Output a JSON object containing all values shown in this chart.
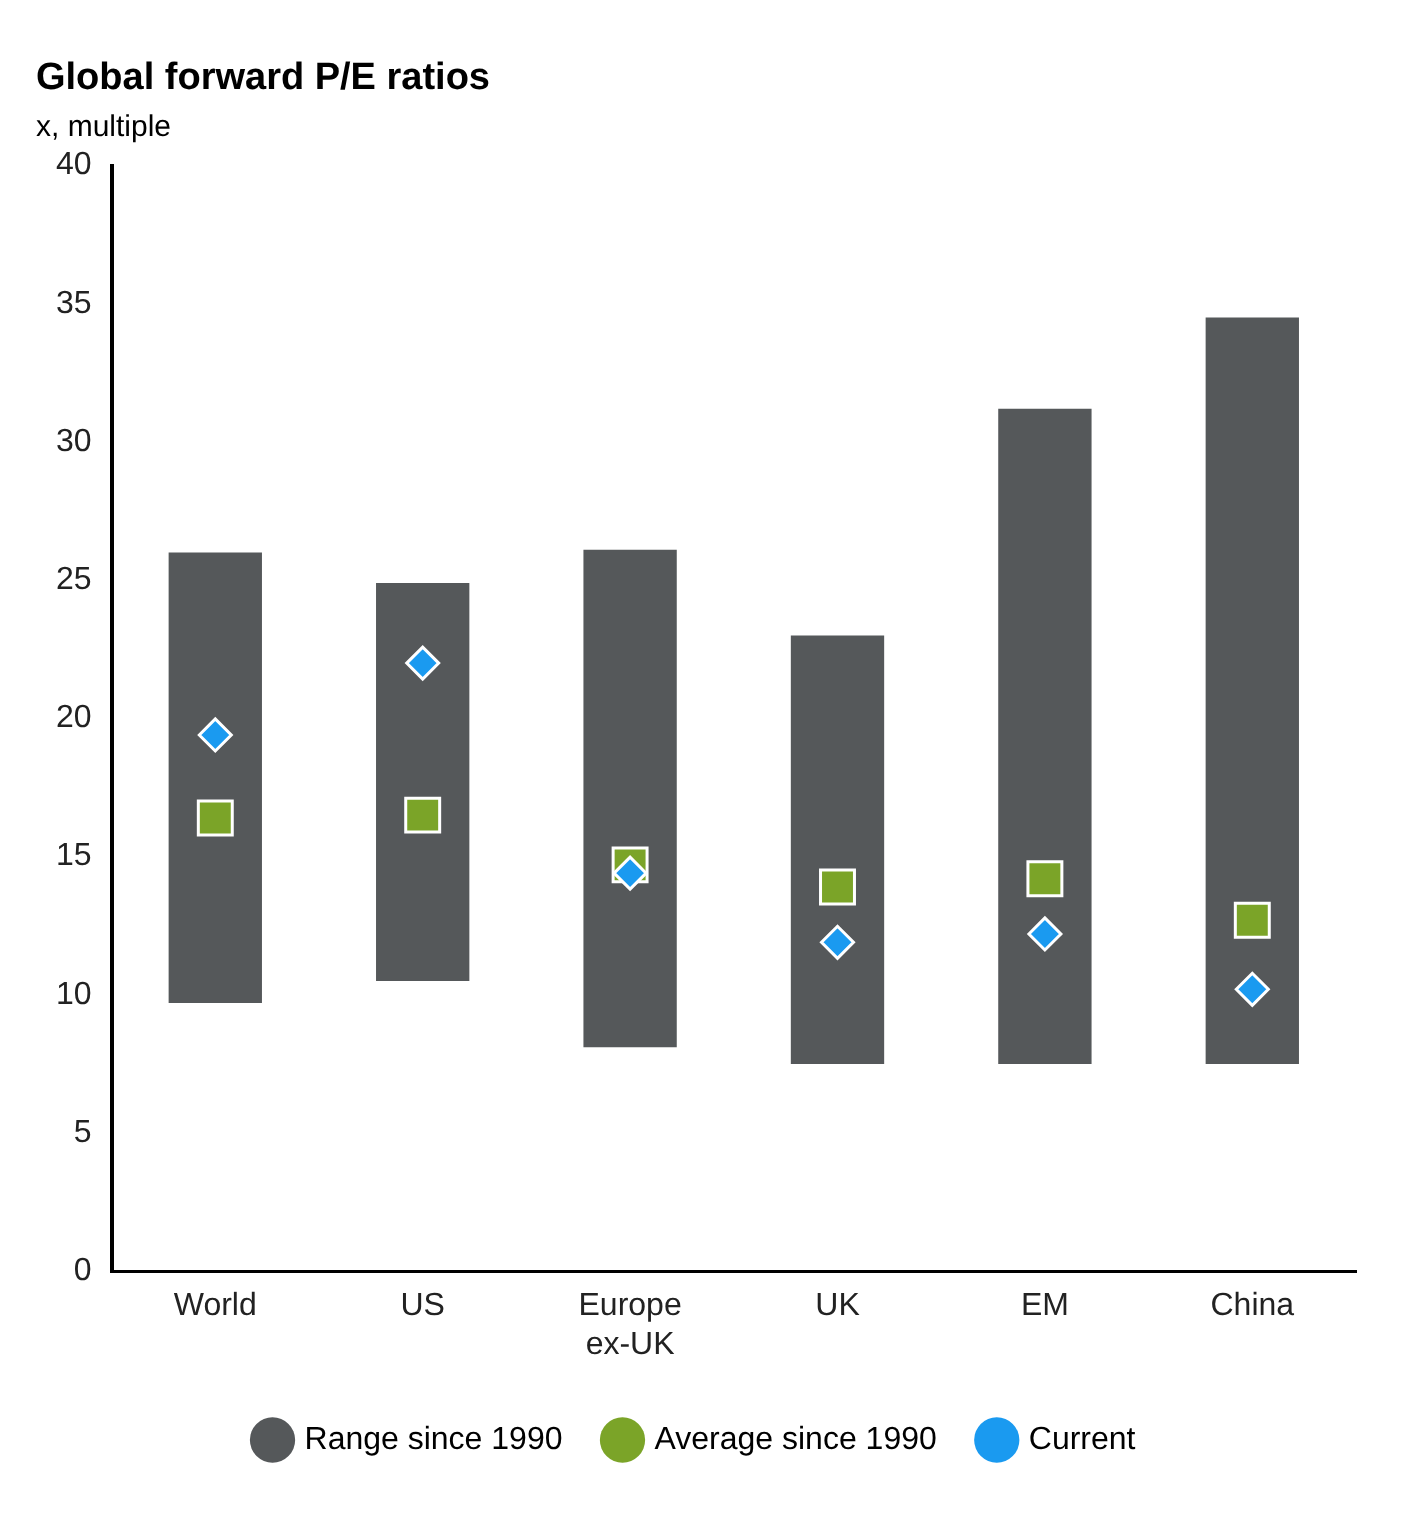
{
  "chart_data": {
    "type": "bar",
    "title": "Global forward P/E ratios",
    "subtitle": "x, multiple",
    "categories": [
      "World",
      "US",
      "Europe ex-UK",
      "UK",
      "EM",
      "China"
    ],
    "series": [
      {
        "name": "Range since 1990",
        "color": "#55585a",
        "base": [
          9.7,
          10.5,
          8.1,
          7.5,
          7.5,
          7.5
        ],
        "values": [
          16.3,
          14.4,
          18.0,
          15.5,
          23.7,
          27.0
        ]
      },
      {
        "name": "Average since 1990",
        "type": "scatter",
        "marker": "square",
        "color": "#7ba428",
        "values": [
          16.4,
          16.5,
          14.7,
          13.9,
          14.2,
          12.7
        ]
      },
      {
        "name": "Current",
        "type": "scatter",
        "marker": "diamond",
        "color": "#1a9af0",
        "values": [
          19.4,
          22.0,
          14.4,
          11.9,
          12.2,
          10.2
        ]
      }
    ],
    "ylim": [
      0,
      40
    ],
    "yticks": [
      0,
      5,
      10,
      15,
      20,
      25,
      30,
      35,
      40
    ],
    "grid": false,
    "legend": "bottom"
  }
}
